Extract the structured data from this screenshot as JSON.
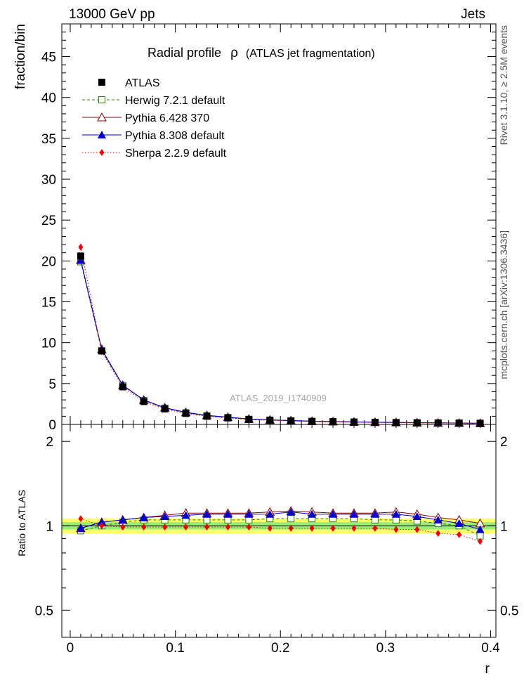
{
  "header": {
    "left": "13000 GeV pp",
    "right": "Jets"
  },
  "side": {
    "rivet": "Rivet 3.1.10, ≥ 2.5M events",
    "mcplots": "mcplots.cern.ch [arXiv:1306.3436]"
  },
  "main_title": {
    "text": "Radial profile",
    "symbol": "ρ",
    "suffix": "(ATLAS jet fragmentation)"
  },
  "analysis_id": "ATLAS_2019_I1740909",
  "chart_data": [
    {
      "type": "line",
      "panel": "main",
      "ylabel": "fraction/bin",
      "xlim": [
        -0.008,
        0.405
      ],
      "ylim": [
        0,
        49
      ],
      "yticks": [
        0,
        5,
        10,
        15,
        20,
        25,
        30,
        35,
        40,
        45
      ],
      "x": [
        0.01,
        0.03,
        0.05,
        0.07,
        0.09,
        0.11,
        0.13,
        0.15,
        0.17,
        0.19,
        0.21,
        0.23,
        0.25,
        0.27,
        0.29,
        0.31,
        0.33,
        0.35,
        0.37,
        0.39
      ],
      "series": [
        {
          "name": "ATLAS",
          "color": "#000000",
          "marker": "square-filled",
          "line": "none",
          "values": [
            20.6,
            9.0,
            4.6,
            2.8,
            1.9,
            1.35,
            1.0,
            0.8,
            0.6,
            0.5,
            0.42,
            0.36,
            0.32,
            0.28,
            0.25,
            0.22,
            0.2,
            0.18,
            0.16,
            0.14
          ]
        },
        {
          "name": "Herwig 7.2.1 default",
          "color": "#2e7d12",
          "marker": "square-open",
          "line": "dashed",
          "values": [
            19.9,
            8.98,
            4.75,
            2.93,
            1.99,
            1.42,
            1.05,
            0.84,
            0.63,
            0.53,
            0.44,
            0.38,
            0.34,
            0.29,
            0.26,
            0.23,
            0.2,
            0.18,
            0.16,
            0.13
          ]
        },
        {
          "name": "Pythia 6.428 370",
          "color": "#8b0000",
          "marker": "triangle-open",
          "line": "solid",
          "values": [
            20.1,
            9.2,
            4.8,
            2.99,
            2.05,
            1.48,
            1.11,
            0.89,
            0.67,
            0.56,
            0.47,
            0.4,
            0.35,
            0.31,
            0.28,
            0.25,
            0.22,
            0.19,
            0.17,
            0.14
          ]
        },
        {
          "name": "Pythia 8.308 default",
          "color": "#0000cc",
          "marker": "triangle-filled",
          "line": "solid",
          "values": [
            20.1,
            9.18,
            4.79,
            2.98,
            2.03,
            1.47,
            1.1,
            0.88,
            0.66,
            0.55,
            0.47,
            0.4,
            0.35,
            0.31,
            0.27,
            0.24,
            0.21,
            0.19,
            0.16,
            0.135
          ]
        },
        {
          "name": "Sherpa 2.2.9 default",
          "color": "#ee0000",
          "marker": "diamond-filled",
          "line": "dotted",
          "values": [
            21.7,
            8.9,
            4.58,
            2.78,
            1.88,
            1.34,
            0.99,
            0.79,
            0.59,
            0.49,
            0.41,
            0.35,
            0.31,
            0.27,
            0.24,
            0.21,
            0.19,
            0.17,
            0.15,
            0.125
          ]
        }
      ]
    },
    {
      "type": "line",
      "panel": "ratio",
      "xlabel": "r",
      "ylabel": "Ratio to ATLAS",
      "xlim": [
        -0.008,
        0.405
      ],
      "ylim": [
        0.4,
        2.3
      ],
      "yscale": "log",
      "yticks": [
        0.5,
        1,
        2
      ],
      "xticks": [
        0,
        0.1,
        0.2,
        0.3,
        0.4
      ],
      "band": {
        "outer": 0.06,
        "inner": 0.03,
        "outer_color": "#ffff66",
        "inner_color": "#99ee77"
      },
      "x": [
        0.01,
        0.03,
        0.05,
        0.07,
        0.09,
        0.11,
        0.13,
        0.15,
        0.17,
        0.19,
        0.21,
        0.23,
        0.25,
        0.27,
        0.29,
        0.31,
        0.33,
        0.35,
        0.37,
        0.39
      ],
      "series": [
        {
          "name": "Herwig 7.2.1 default",
          "color": "#2e7d12",
          "marker": "square-open",
          "line": "dashed",
          "values": [
            0.96,
            1.0,
            1.03,
            1.05,
            1.05,
            1.05,
            1.05,
            1.05,
            1.05,
            1.06,
            1.06,
            1.06,
            1.06,
            1.06,
            1.05,
            1.05,
            1.04,
            1.02,
            1.0,
            0.92
          ]
        },
        {
          "name": "Pythia 6.428 370",
          "color": "#8b0000",
          "marker": "triangle-open",
          "line": "solid",
          "values": [
            0.98,
            1.03,
            1.05,
            1.07,
            1.09,
            1.11,
            1.11,
            1.11,
            1.11,
            1.12,
            1.13,
            1.12,
            1.11,
            1.11,
            1.11,
            1.12,
            1.1,
            1.07,
            1.05,
            1.02
          ]
        },
        {
          "name": "Pythia 8.308 default",
          "color": "#0000cc",
          "marker": "triangle-filled",
          "line": "solid",
          "values": [
            0.98,
            1.03,
            1.05,
            1.07,
            1.08,
            1.09,
            1.1,
            1.1,
            1.1,
            1.1,
            1.12,
            1.1,
            1.1,
            1.1,
            1.1,
            1.1,
            1.08,
            1.05,
            1.02,
            0.97
          ]
        },
        {
          "name": "Sherpa 2.2.9 default",
          "color": "#ee0000",
          "marker": "diamond-filled",
          "line": "dotted",
          "values": [
            1.06,
            1.0,
            0.99,
            0.99,
            0.99,
            0.99,
            0.99,
            0.99,
            0.99,
            0.98,
            0.98,
            0.98,
            0.98,
            0.98,
            0.98,
            0.97,
            0.97,
            0.94,
            0.93,
            0.88
          ]
        }
      ]
    }
  ]
}
